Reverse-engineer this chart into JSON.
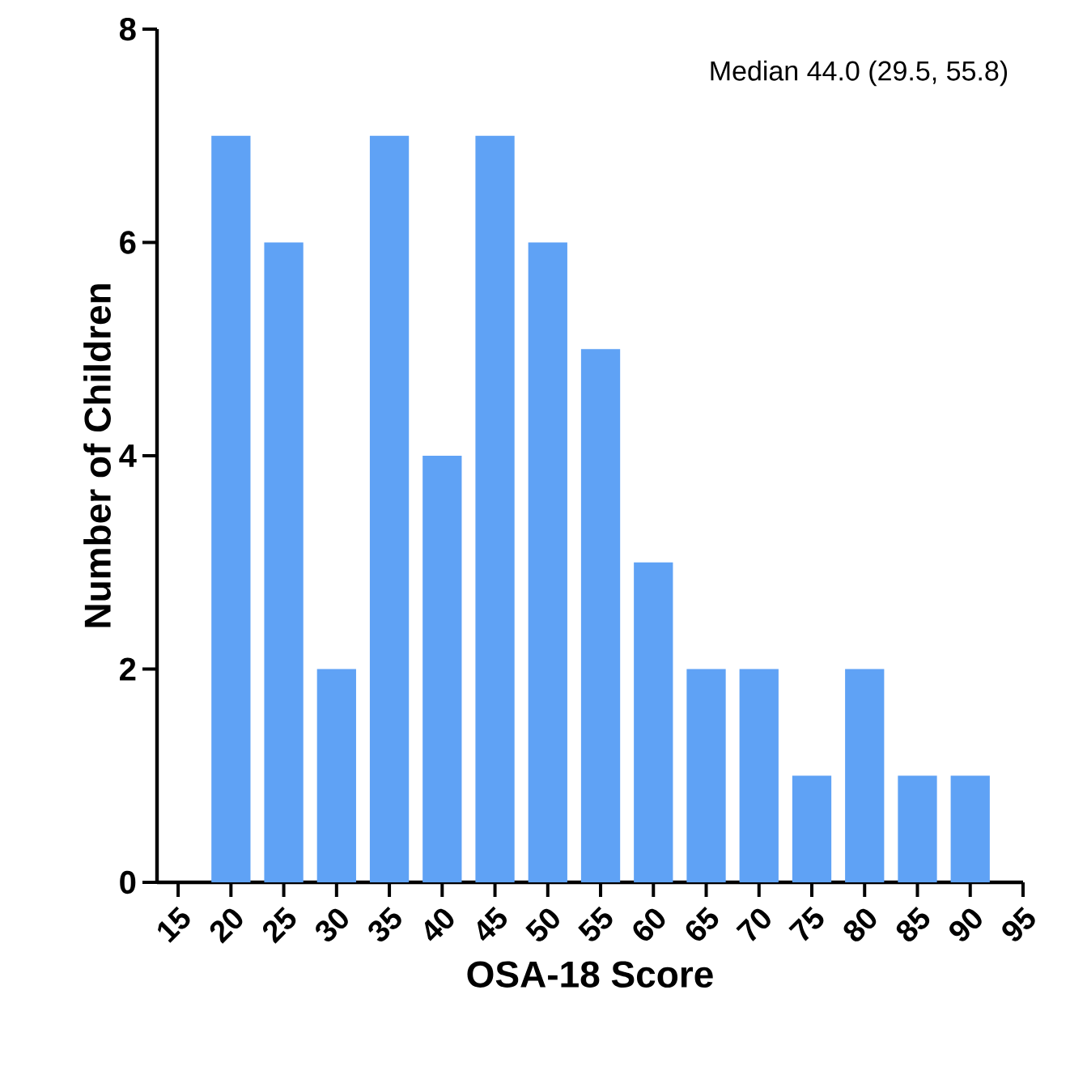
{
  "chart_data": {
    "type": "bar",
    "xlabel": "OSA-18 Score",
    "ylabel": "Number of Children",
    "x": [
      20,
      25,
      30,
      35,
      40,
      45,
      50,
      55,
      60,
      65,
      70,
      75,
      80,
      85,
      90
    ],
    "values": [
      7,
      6,
      2,
      7,
      4,
      7,
      6,
      5,
      3,
      2,
      2,
      1,
      2,
      1,
      1
    ],
    "color": "#5fa2f5",
    "xlim": [
      13,
      95
    ],
    "xticks": [
      15,
      20,
      25,
      30,
      35,
      40,
      45,
      50,
      55,
      60,
      65,
      70,
      75,
      80,
      85,
      90,
      95
    ],
    "ylim": [
      0,
      8
    ],
    "yticks": [
      0,
      2,
      4,
      6,
      8
    ],
    "annotations": [
      "Median 44.0 (29.5, 55.8)"
    ]
  }
}
